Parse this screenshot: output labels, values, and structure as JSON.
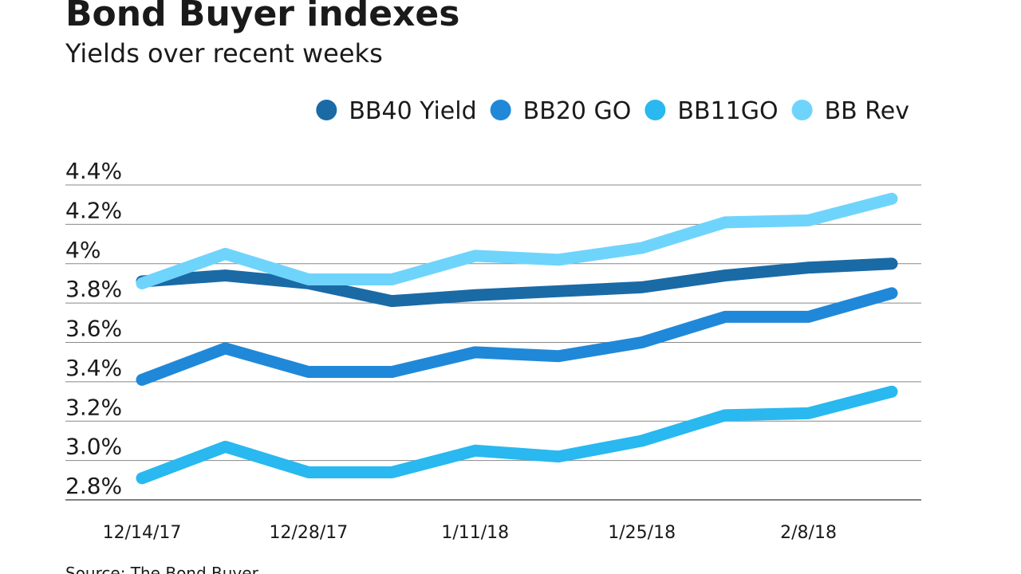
{
  "chart_data": {
    "type": "line",
    "title": "Bond Buyer indexes",
    "subtitle": "Yields over recent weeks",
    "source": "Source: The Bond Buyer",
    "categories": [
      "12/14/17",
      null,
      "12/28/17",
      null,
      "1/11/18",
      null,
      "1/25/18",
      null,
      "2/8/18",
      null
    ],
    "series": [
      {
        "name": "BB40 Yield",
        "color": "#1a6aa6",
        "values": [
          3.91,
          3.94,
          3.9,
          3.81,
          3.84,
          3.86,
          3.88,
          3.94,
          3.98,
          4.0
        ]
      },
      {
        "name": "BB20 GO",
        "color": "#2088d8",
        "values": [
          3.41,
          3.57,
          3.45,
          3.45,
          3.55,
          3.53,
          3.6,
          3.73,
          3.73,
          3.85
        ]
      },
      {
        "name": "BB11GO",
        "color": "#29b8ef",
        "values": [
          2.91,
          3.07,
          2.94,
          2.94,
          3.05,
          3.02,
          3.1,
          3.23,
          3.24,
          3.35
        ]
      },
      {
        "name": "BB Rev",
        "color": "#6fd4fb",
        "values": [
          3.9,
          4.05,
          3.92,
          3.92,
          4.04,
          4.02,
          4.08,
          4.21,
          4.22,
          4.33
        ]
      }
    ],
    "ylim": [
      2.8,
      4.4
    ],
    "yticks": [
      {
        "value": 2.8,
        "label": "2.8%"
      },
      {
        "value": 3.0,
        "label": "3.0%"
      },
      {
        "value": 3.2,
        "label": "3.2%"
      },
      {
        "value": 3.4,
        "label": "3.4%"
      },
      {
        "value": 3.6,
        "label": "3.6%"
      },
      {
        "value": 3.8,
        "label": "3.8%"
      },
      {
        "value": 4.0,
        "label": "4%"
      },
      {
        "value": 4.2,
        "label": "4.2%"
      },
      {
        "value": 4.4,
        "label": "4.4%"
      }
    ],
    "grid": true,
    "legend": "top"
  }
}
